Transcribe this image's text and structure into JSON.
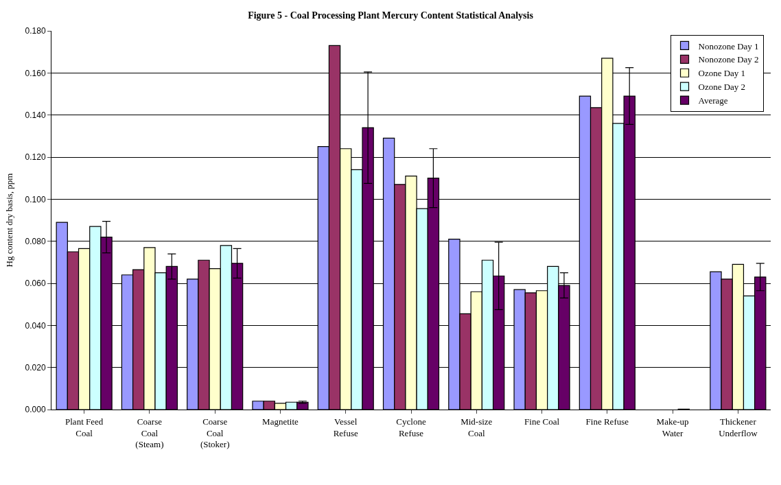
{
  "chart_data": {
    "type": "bar",
    "title": "Figure 5 - Coal Processing Plant Mercury Content Statistical Analysis",
    "ylabel": "Hg content dry basis, ppm",
    "categories": [
      "Plant Feed\nCoal",
      "Coarse\nCoal\n(Steam)",
      "Coarse\nCoal\n(Stoker)",
      "Magnetite",
      "Vessel\nRefuse",
      "Cyclone\nRefuse",
      "Mid-size\nCoal",
      "Fine Coal",
      "Fine Refuse",
      "Make-up\nWater",
      "Thickener\nUnderflow"
    ],
    "series": [
      {
        "name": "Nonozone Day 1",
        "color": "#9999ff",
        "values": [
          0.089,
          0.064,
          0.062,
          0.004,
          0.125,
          0.129,
          0.081,
          0.057,
          0.149,
          null,
          0.0655
        ]
      },
      {
        "name": "Nonozone Day 2",
        "color": "#993366",
        "values": [
          0.075,
          0.0665,
          0.071,
          0.004,
          0.173,
          0.107,
          0.0455,
          0.0555,
          0.1435,
          null,
          0.062
        ]
      },
      {
        "name": "Ozone Day 1",
        "color": "#ffffcc",
        "values": [
          0.0765,
          0.077,
          0.067,
          0.003,
          0.124,
          0.111,
          0.056,
          0.0565,
          0.167,
          null,
          0.069
        ]
      },
      {
        "name": "Ozone Day 2",
        "color": "#ccffff",
        "values": [
          0.087,
          0.065,
          0.078,
          0.0035,
          0.114,
          0.0955,
          0.071,
          0.068,
          0.136,
          0.0002,
          0.054
        ]
      },
      {
        "name": "Average",
        "color": "#660066",
        "values": [
          0.082,
          0.068,
          0.0695,
          0.0035,
          0.134,
          0.11,
          0.0635,
          0.059,
          0.149,
          null,
          0.063
        ],
        "errors": [
          0.0075,
          0.006,
          0.007,
          0.0005,
          0.0265,
          0.014,
          0.016,
          0.006,
          0.0135,
          null,
          0.0065
        ]
      }
    ],
    "ylim": [
      0,
      0.18
    ],
    "yticks": [
      {
        "value": 0,
        "label": "0.000"
      },
      {
        "value": 0.02,
        "label": "0.020"
      },
      {
        "value": 0.04,
        "label": "0.040"
      },
      {
        "value": 0.06,
        "label": "0.060"
      },
      {
        "value": 0.08,
        "label": "0.080"
      },
      {
        "value": 0.1,
        "label": "0.100"
      },
      {
        "value": 0.12,
        "label": "0.120"
      },
      {
        "value": 0.14,
        "label": "0.140"
      },
      {
        "value": 0.16,
        "label": "0.160"
      },
      {
        "value": 0.18,
        "label": "0.180"
      }
    ],
    "grid": "y",
    "legend": "top right"
  }
}
